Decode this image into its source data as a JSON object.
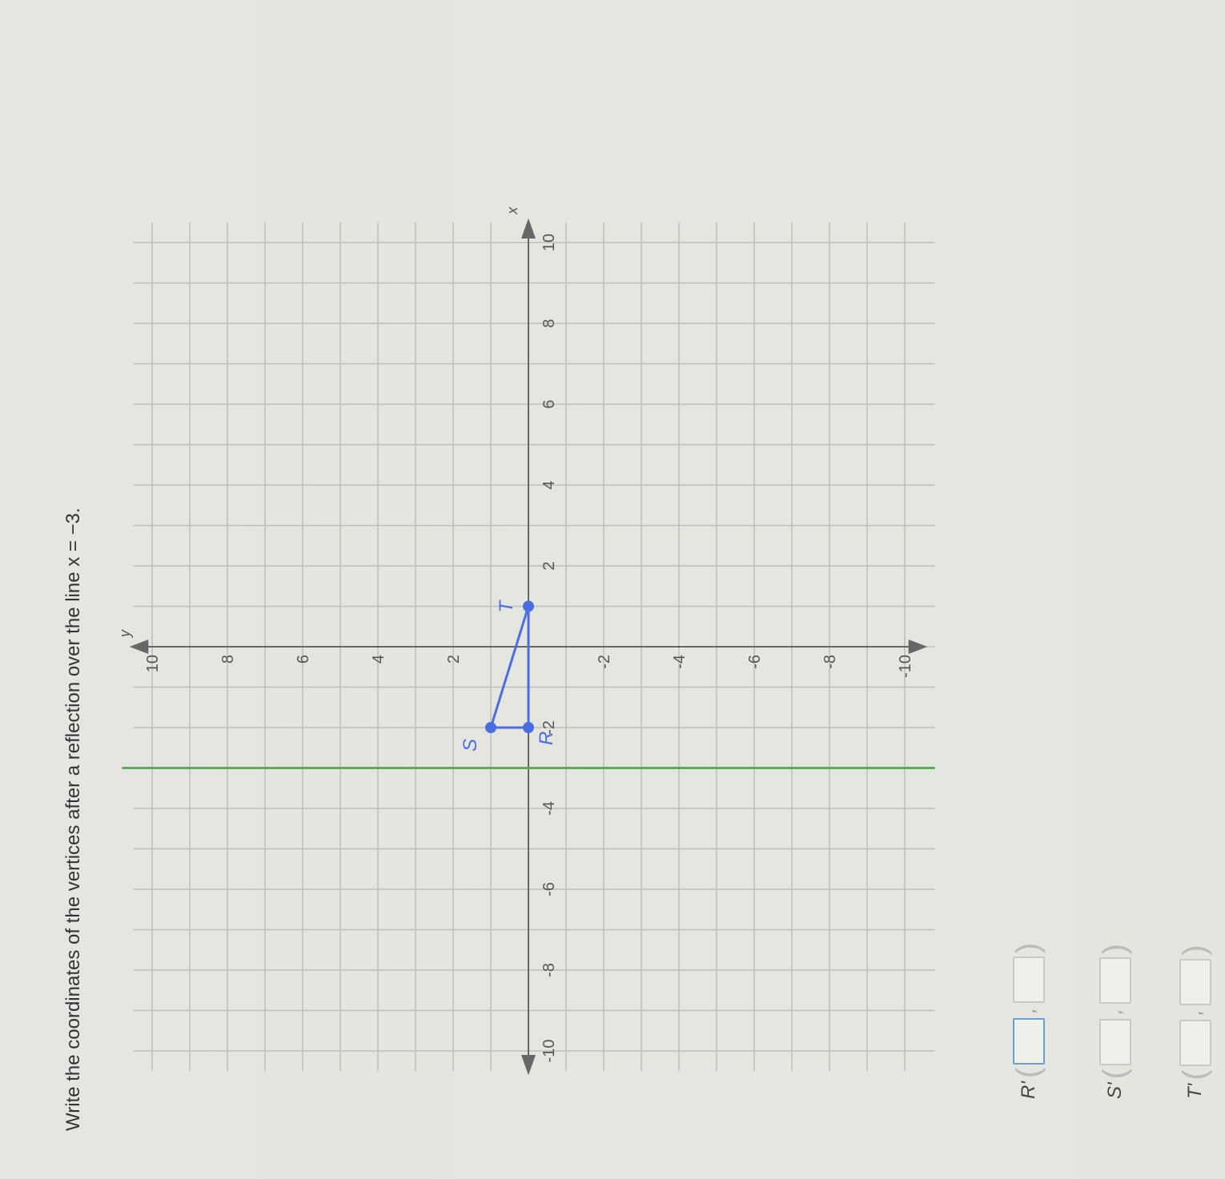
{
  "prompt": "Write the coordinates of the vertices after a reflection over the line x = −3.",
  "answers": [
    {
      "label": "R'",
      "x": "",
      "y": ""
    },
    {
      "label": "S'",
      "x": "",
      "y": ""
    },
    {
      "label": "T'",
      "x": "",
      "y": ""
    }
  ],
  "chart_data": {
    "type": "scatter",
    "xlabel": "x",
    "ylabel": "y",
    "xlim": [
      -10,
      10
    ],
    "ylim": [
      -10,
      10
    ],
    "grid": true,
    "xticks": [
      "-10",
      "-8",
      "-6",
      "-4",
      "-2",
      "2",
      "4",
      "6",
      "8",
      "10"
    ],
    "yticks": [
      "10",
      "8",
      "6",
      "4",
      "2",
      "-2",
      "-4",
      "-6",
      "-8",
      "-10"
    ],
    "triangle_color": "#4a6de0",
    "reflection_line_color": "#5aaa5a",
    "reflection_line": {
      "x": -3
    },
    "points": [
      {
        "label": "R",
        "x": -2,
        "y": 0
      },
      {
        "label": "S",
        "x": -2,
        "y": 1
      },
      {
        "label": "T",
        "x": 1,
        "y": 0
      }
    ]
  }
}
